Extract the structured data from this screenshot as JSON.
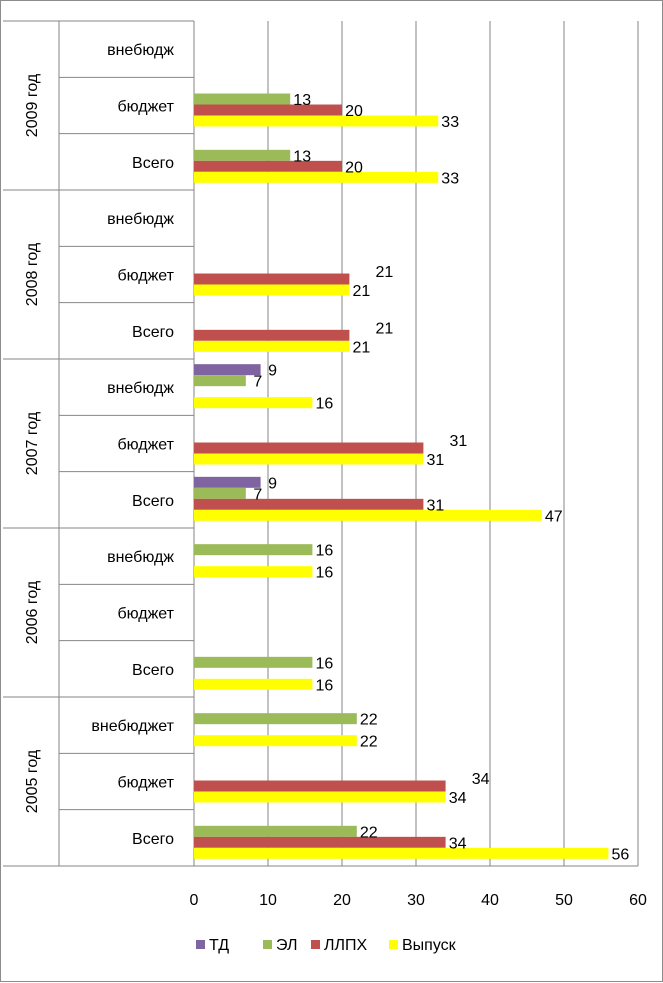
{
  "chart_data": {
    "type": "bar",
    "orientation": "horizontal",
    "xlim": [
      0,
      60
    ],
    "x_ticks": [
      "0",
      "10",
      "20",
      "30",
      "40",
      "50",
      "60"
    ],
    "grid": true,
    "legend_position": "bottom",
    "series": [
      {
        "name": "ТД",
        "color": "#8064a2"
      },
      {
        "name": "ЭЛ",
        "color": "#9bbb59"
      },
      {
        "name": "ЛЛПХ",
        "color": "#c0504d"
      },
      {
        "name": "Выпуск",
        "color": "#ffff00"
      }
    ],
    "groups": [
      {
        "label": "2009 год",
        "categories": [
          {
            "label": "внебюдж",
            "values": [
              null,
              null,
              null,
              null
            ]
          },
          {
            "label": "бюджет",
            "values": [
              null,
              13,
              20,
              33
            ]
          },
          {
            "label": "Всего",
            "values": [
              null,
              13,
              20,
              33
            ]
          }
        ]
      },
      {
        "label": "2008 год",
        "categories": [
          {
            "label": "внебюдж",
            "values": [
              null,
              null,
              null,
              null
            ]
          },
          {
            "label": "бюджет",
            "values": [
              null,
              null,
              21,
              21
            ]
          },
          {
            "label": "Всего",
            "values": [
              null,
              null,
              21,
              21
            ]
          }
        ]
      },
      {
        "label": "2007 год",
        "categories": [
          {
            "label": "внебюдж",
            "values": [
              9,
              7,
              null,
              16
            ]
          },
          {
            "label": "бюджет",
            "values": [
              null,
              null,
              31,
              31
            ]
          },
          {
            "label": "Всего",
            "values": [
              9,
              7,
              31,
              47
            ]
          }
        ]
      },
      {
        "label": "2006 год",
        "categories": [
          {
            "label": "внебюдж",
            "values": [
              null,
              16,
              null,
              16
            ]
          },
          {
            "label": "бюджет",
            "values": [
              null,
              null,
              null,
              null
            ]
          },
          {
            "label": "Всего",
            "values": [
              null,
              16,
              null,
              16
            ]
          }
        ]
      },
      {
        "label": "2005 год",
        "categories": [
          {
            "label": "внебюджет",
            "values": [
              null,
              22,
              null,
              22
            ]
          },
          {
            "label": "бюджет",
            "values": [
              null,
              null,
              34,
              34
            ]
          },
          {
            "label": "Всего",
            "values": [
              null,
              22,
              34,
              56
            ]
          }
        ]
      }
    ]
  }
}
